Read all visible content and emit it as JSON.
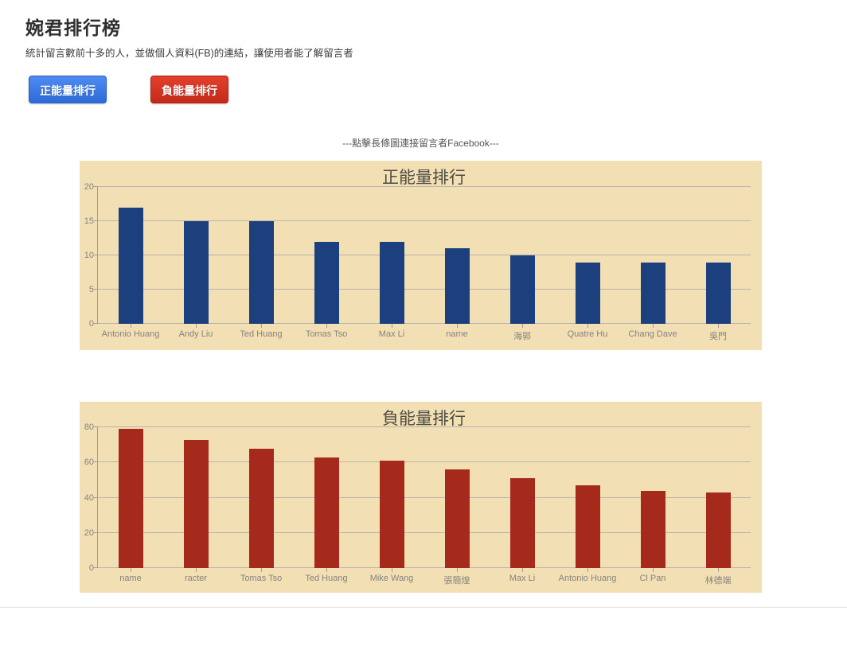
{
  "page": {
    "title": "婉君排行榜",
    "subtitle": "統計留言數前十多的人，並做個人資料(FB)的連結，讓使用者能了解留言者",
    "note": "---點擊長條圖連接留言者Facebook---",
    "buttons": {
      "positive": "正能量排行",
      "negative": "負能量排行"
    },
    "colors": {
      "positive_button": "#3a78e0",
      "negative_button": "#cd2d1a",
      "chart_background": "#f3dfb4",
      "positive_bar": "#1c3f7d",
      "negative_bar": "#a52a1c",
      "gridline": "#b5b5ad",
      "axis_label": "#85857e"
    }
  },
  "chart_data": [
    {
      "type": "bar",
      "title": "正能量排行",
      "categories": [
        "Antonio Huang",
        "Andy Liu",
        "Ted Huang",
        "Tomas Tso",
        "Max Li",
        "name",
        "海郭",
        "Quatre Hu",
        "Chang Dave",
        "吳門"
      ],
      "values": [
        17,
        15,
        15,
        12,
        12,
        11,
        10,
        9,
        9,
        9
      ],
      "xlabel": "",
      "ylabel": "",
      "ylim": [
        0,
        20
      ],
      "yticks": [
        0,
        5,
        10,
        15,
        20
      ],
      "bar_color": "#1c3f7d",
      "background": "#f3dfb4",
      "grid": true,
      "legend": "none"
    },
    {
      "type": "bar",
      "title": "負能量排行",
      "categories": [
        "name",
        "racter",
        "Tomas Tso",
        "Ted Huang",
        "Mike Wang",
        "張簡煌",
        "Max Li",
        "Antonio Huang",
        "Cl Pan",
        "林德端"
      ],
      "values": [
        79,
        73,
        68,
        63,
        61,
        56,
        51,
        47,
        44,
        43
      ],
      "xlabel": "",
      "ylabel": "",
      "ylim": [
        0,
        80
      ],
      "yticks": [
        0,
        20,
        40,
        60,
        80
      ],
      "bar_color": "#a52a1c",
      "background": "#f3dfb4",
      "grid": true,
      "legend": "none"
    }
  ]
}
